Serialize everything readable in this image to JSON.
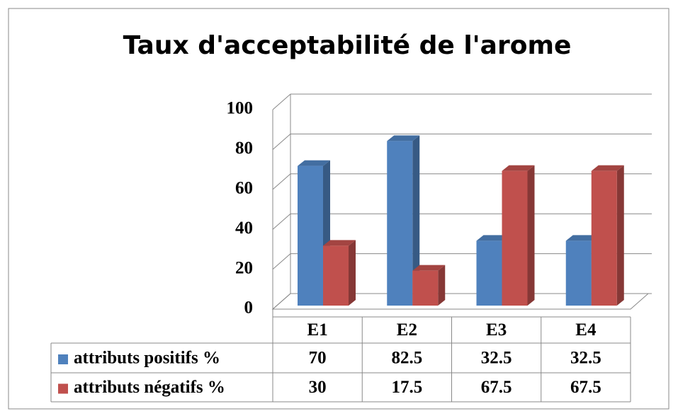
{
  "chart_data": {
    "type": "bar3d",
    "title": "Taux d'acceptabilité de l'arome",
    "categories": [
      "E1",
      "E2",
      "E3",
      "E4"
    ],
    "series": [
      {
        "name": "attributs positifs %",
        "color": "#4f81bd",
        "values": [
          70,
          82.5,
          32.5,
          32.5
        ]
      },
      {
        "name": "attributs négatifs %",
        "color": "#c0504d",
        "values": [
          30,
          17.5,
          67.5,
          67.5
        ]
      }
    ],
    "ylim": [
      0,
      100
    ],
    "yticks": [
      0,
      20,
      40,
      60,
      80,
      100
    ],
    "grid": true,
    "data_table": true
  }
}
